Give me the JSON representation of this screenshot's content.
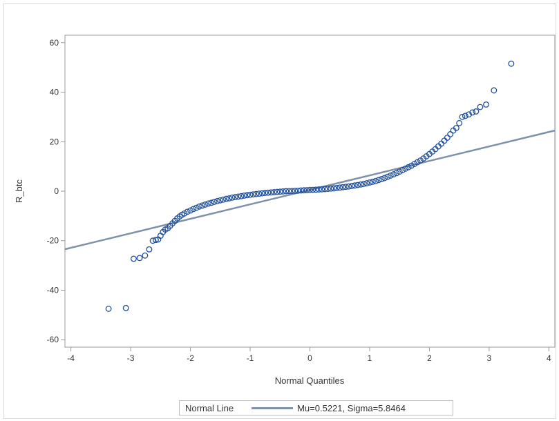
{
  "chart_data": {
    "type": "scatter",
    "title": "",
    "xlabel": "Normal Quantiles",
    "ylabel": "R_btc",
    "xlim": [
      -4.1,
      4.1
    ],
    "ylim": [
      -63,
      63
    ],
    "xticks": [
      -4,
      -3,
      -2,
      -1,
      0,
      1,
      2,
      3,
      4
    ],
    "yticks": [
      -60,
      -40,
      -20,
      0,
      20,
      40,
      60
    ],
    "grid": false,
    "legend_position": "bottom-center",
    "colors": {
      "points": "#1f4e99",
      "line": "#7f91aa"
    },
    "reference_line": {
      "name": "Mu=0.5221, Sigma=5.8464",
      "mu": 0.5221,
      "sigma": 5.8464
    },
    "series": [
      {
        "name": "",
        "x": [
          -3.37,
          -3.08,
          -2.95,
          -2.85,
          -2.76,
          -2.69,
          -2.63,
          -2.58,
          -2.54,
          -2.5,
          -2.46,
          -2.42,
          -2.38,
          -2.34,
          -2.3,
          -2.26,
          -2.22,
          -2.18,
          -2.14,
          -2.1,
          -2.05,
          -2.0,
          -1.95,
          -1.9,
          -1.85,
          -1.8,
          -1.75,
          -1.7,
          -1.65,
          -1.6,
          -1.55,
          -1.5,
          -1.45,
          -1.4,
          -1.35,
          -1.3,
          -1.25,
          -1.2,
          -1.15,
          -1.1,
          -1.05,
          -1.0,
          -0.95,
          -0.9,
          -0.85,
          -0.8,
          -0.75,
          -0.7,
          -0.65,
          -0.6,
          -0.55,
          -0.5,
          -0.45,
          -0.4,
          -0.35,
          -0.3,
          -0.25,
          -0.2,
          -0.15,
          -0.1,
          -0.05,
          0.0,
          0.05,
          0.1,
          0.15,
          0.2,
          0.25,
          0.3,
          0.35,
          0.4,
          0.45,
          0.5,
          0.55,
          0.6,
          0.65,
          0.7,
          0.75,
          0.8,
          0.85,
          0.9,
          0.95,
          1.0,
          1.05,
          1.1,
          1.15,
          1.2,
          1.25,
          1.3,
          1.35,
          1.4,
          1.45,
          1.5,
          1.55,
          1.6,
          1.65,
          1.7,
          1.75,
          1.8,
          1.85,
          1.9,
          1.95,
          2.0,
          2.05,
          2.1,
          2.15,
          2.2,
          2.25,
          2.3,
          2.35,
          2.4,
          2.45,
          2.5,
          2.55,
          2.6,
          2.66,
          2.72,
          2.78,
          2.85,
          2.95,
          3.08,
          3.37
        ],
        "y": [
          -47.5,
          -47.2,
          -27.3,
          -27.0,
          -26.0,
          -23.5,
          -20.0,
          -19.7,
          -19.5,
          -18.0,
          -16.5,
          -15.5,
          -15.0,
          -14.0,
          -13.0,
          -12.0,
          -11.0,
          -10.2,
          -9.5,
          -9.0,
          -8.3,
          -7.8,
          -7.2,
          -6.7,
          -6.2,
          -5.8,
          -5.4,
          -5.0,
          -4.7,
          -4.3,
          -4.0,
          -3.7,
          -3.4,
          -3.1,
          -2.9,
          -2.6,
          -2.4,
          -2.2,
          -2.0,
          -1.8,
          -1.6,
          -1.45,
          -1.3,
          -1.15,
          -1.0,
          -0.85,
          -0.7,
          -0.6,
          -0.5,
          -0.4,
          -0.3,
          -0.2,
          -0.1,
          0.0,
          0.05,
          0.1,
          0.15,
          0.2,
          0.3,
          0.35,
          0.4,
          0.5,
          0.55,
          0.6,
          0.7,
          0.75,
          0.85,
          0.95,
          1.05,
          1.15,
          1.3,
          1.45,
          1.6,
          1.75,
          1.9,
          2.1,
          2.3,
          2.5,
          2.7,
          2.95,
          3.2,
          3.5,
          3.8,
          4.1,
          4.5,
          4.9,
          5.3,
          5.8,
          6.3,
          6.8,
          7.3,
          7.9,
          8.5,
          9.1,
          9.7,
          10.3,
          11.0,
          11.7,
          12.4,
          13.2,
          14.1,
          15.0,
          16.0,
          17.0,
          18.1,
          19.2,
          20.4,
          21.6,
          23.0,
          24.5,
          25.5,
          27.5,
          30.0,
          30.4,
          31.0,
          31.8,
          32.2,
          34.0,
          35.0,
          40.7,
          51.5
        ]
      }
    ]
  },
  "legend": {
    "title": "Normal Line",
    "label": "Mu=0.5221, Sigma=5.8464"
  }
}
